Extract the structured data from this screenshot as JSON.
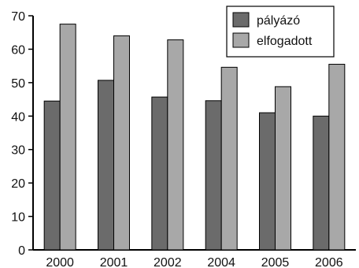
{
  "chart_data": {
    "type": "bar",
    "title": "",
    "xlabel": "",
    "ylabel": "",
    "categories": [
      "2000",
      "2001",
      "2002",
      "2004",
      "2005",
      "2006"
    ],
    "series": [
      {
        "name": "pályázó",
        "color": "#6b6b6b",
        "values": [
          44.5,
          50.7,
          45.7,
          44.6,
          41.0,
          40.0
        ]
      },
      {
        "name": "elfogadott",
        "color": "#a8a8a8",
        "values": [
          67.5,
          64.0,
          62.8,
          54.6,
          48.8,
          55.5
        ]
      }
    ],
    "ylim": [
      0,
      70
    ],
    "yticks": [
      "0",
      "10",
      "20",
      "30",
      "40",
      "50",
      "60",
      "70"
    ],
    "grid": false,
    "legend_position": "top-right"
  }
}
